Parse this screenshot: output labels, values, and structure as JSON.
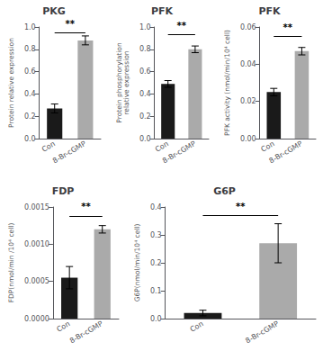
{
  "chart_data": [
    {
      "type": "bar",
      "title": "PKG",
      "ylabel": "Protein relative expression",
      "categories": [
        "Con",
        "8-Br-cGMP"
      ],
      "values": [
        0.27,
        0.88
      ],
      "errors": [
        0.04,
        0.04
      ],
      "colors": [
        "#1a1a1a",
        "#aaaaaa"
      ],
      "ylim": [
        0.0,
        1.0
      ],
      "yticks": [
        {
          "value": 0,
          "label": "0.0"
        },
        0.2,
        0.4,
        0.6,
        0.8,
        {
          "value": 1,
          "label": "1.0"
        }
      ],
      "grid": false,
      "annotations": [
        {
          "text": "**",
          "y": 0.95
        }
      ]
    },
    {
      "type": "bar",
      "title": "PFK",
      "ylabel": "Protein phosphorylation\nrelative expression",
      "categories": [
        "Con",
        "8-Br-cGMP"
      ],
      "values": [
        0.49,
        0.8
      ],
      "errors": [
        0.03,
        0.03
      ],
      "colors": [
        "#1a1a1a",
        "#aaaaaa"
      ],
      "ylim": [
        0.0,
        1.0
      ],
      "yticks": [
        {
          "value": 0,
          "label": "0.0"
        },
        0.2,
        0.4,
        0.6,
        0.8,
        {
          "value": 1,
          "label": "1.0"
        }
      ],
      "grid": false,
      "annotations": [
        {
          "text": "**",
          "y": 0.93
        }
      ]
    },
    {
      "type": "bar",
      "title": "PFK",
      "ylabel": "PFK activity (nmol/min/10⁴ cell)",
      "categories": [
        "Con",
        "8-Br-cGMP"
      ],
      "values": [
        0.025,
        0.047
      ],
      "errors": [
        0.002,
        0.002
      ],
      "colors": [
        "#1a1a1a",
        "#aaaaaa"
      ],
      "ylim": [
        0.0,
        0.06
      ],
      "yticks": [
        {
          "value": 0,
          "label": "0.00"
        },
        0.02,
        0.04,
        0.06
      ],
      "grid": false,
      "annotations": [
        {
          "text": "**",
          "y": 0.055
        }
      ]
    },
    {
      "type": "bar",
      "title": "FDP",
      "ylabel": "FDP(nmol/min /10⁴ cell)",
      "categories": [
        "Con",
        "8-Br-cGMP"
      ],
      "values": [
        0.00055,
        0.0012
      ],
      "errors": [
        0.00015,
        5e-05
      ],
      "colors": [
        "#1a1a1a",
        "#aaaaaa"
      ],
      "ylim": [
        0.0,
        0.0015
      ],
      "yticks": [
        {
          "value": 0,
          "label": "0.0000"
        },
        0.0005,
        {
          "value": 0.001,
          "label": "0.0010"
        },
        0.0015
      ],
      "grid": false,
      "annotations": [
        {
          "text": "**",
          "y": 0.00138
        }
      ]
    },
    {
      "type": "bar",
      "title": "G6P",
      "ylabel": "G6P(nmol/min/10⁴ cell)",
      "categories": [
        "Con",
        "8-Br-cGMP"
      ],
      "values": [
        0.02,
        0.27
      ],
      "errors": [
        0.01,
        0.07
      ],
      "colors": [
        "#1a1a1a",
        "#aaaaaa"
      ],
      "ylim": [
        0.0,
        0.4
      ],
      "yticks": [
        {
          "value": 0,
          "label": "0.0"
        },
        0.1,
        0.2,
        0.3,
        0.4
      ],
      "grid": false,
      "annotations": [
        {
          "text": "**",
          "y": 0.37
        }
      ]
    }
  ]
}
